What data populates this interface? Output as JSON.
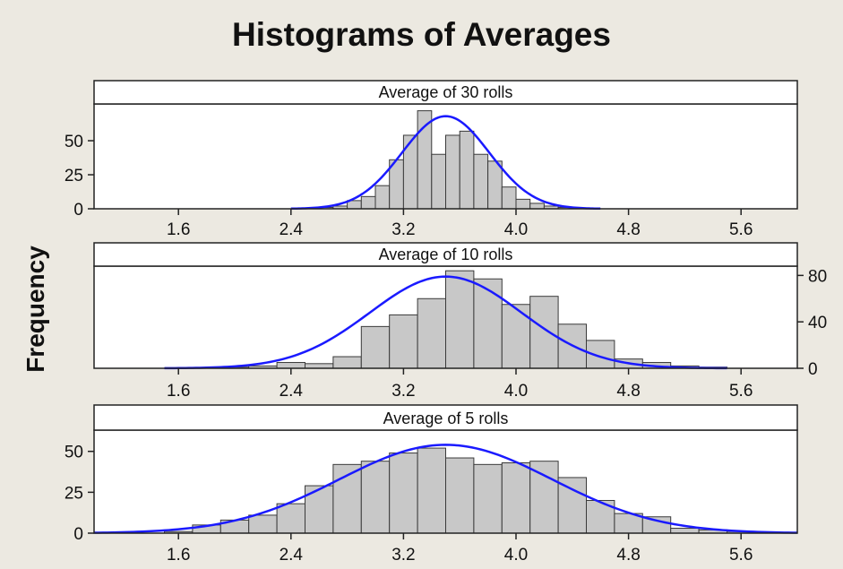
{
  "title": "Histograms of Averages",
  "ylabel": "Frequency",
  "chart_data": [
    {
      "type": "bar",
      "title": "Average of 30 rolls",
      "xlabel": "",
      "ylabel": "Frequency",
      "xlim": [
        1.0,
        6.0
      ],
      "ylim": [
        0,
        77
      ],
      "x_ticks": [
        "1.6",
        "2.4",
        "3.2",
        "4.0",
        "4.8",
        "5.6"
      ],
      "y_ticks": [
        "0",
        "25",
        "50"
      ],
      "y_axis_side": "left",
      "bin_width": 0.1,
      "bins_start": 2.6,
      "values": [
        1,
        2,
        6,
        9,
        17,
        36,
        54,
        72,
        40,
        54,
        57,
        40,
        35,
        16,
        7,
        4,
        2,
        1
      ],
      "curve": {
        "mean": 3.5,
        "sd": 0.31,
        "peak": 68,
        "range": [
          2.4,
          4.6
        ]
      }
    },
    {
      "type": "bar",
      "title": "Average of 10 rolls",
      "xlabel": "",
      "ylabel": "Frequency",
      "xlim": [
        1.0,
        6.0
      ],
      "ylim": [
        0,
        88
      ],
      "x_ticks": [
        "1.6",
        "2.4",
        "3.2",
        "4.0",
        "4.8",
        "5.6"
      ],
      "y_ticks": [
        "0",
        "40",
        "80"
      ],
      "y_axis_side": "right",
      "bin_width": 0.2,
      "bins_start": 1.9,
      "values": [
        1,
        2,
        5,
        4,
        10,
        36,
        46,
        60,
        84,
        77,
        55,
        62,
        38,
        24,
        8,
        5,
        2,
        1
      ],
      "curve": {
        "mean": 3.5,
        "sd": 0.54,
        "peak": 79,
        "range": [
          1.5,
          5.5
        ]
      }
    },
    {
      "type": "bar",
      "title": "Average of 5 rolls",
      "xlabel": "",
      "ylabel": "Frequency",
      "xlim": [
        1.0,
        6.0
      ],
      "ylim": [
        0,
        63
      ],
      "x_ticks": [
        "1.6",
        "2.4",
        "3.2",
        "4.0",
        "4.8",
        "5.6"
      ],
      "y_ticks": [
        "0",
        "25",
        "50"
      ],
      "y_axis_side": "left",
      "bin_width": 0.2,
      "bins_start": 1.5,
      "values": [
        1,
        5,
        8,
        11,
        18,
        29,
        42,
        44,
        49,
        52,
        46,
        42,
        43,
        44,
        34,
        20,
        12,
        10,
        3,
        2,
        1
      ],
      "curve": {
        "mean": 3.5,
        "sd": 0.76,
        "peak": 54,
        "range": [
          1.0,
          6.0
        ]
      }
    }
  ]
}
